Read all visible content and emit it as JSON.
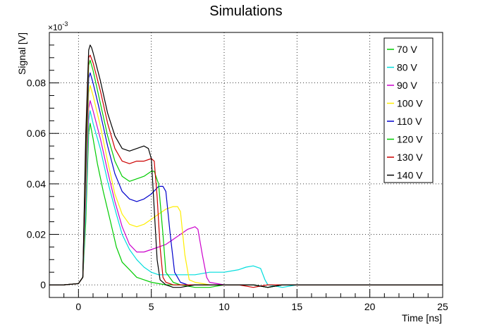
{
  "chart_data": {
    "type": "line",
    "title": "Simulations",
    "xlabel": "Time [ns]",
    "ylabel": "Signal [V]",
    "y_multiplier_label": "×10",
    "y_multiplier_exponent": "-3",
    "xlim": [
      -2,
      25
    ],
    "ylim": [
      -0.005,
      0.1
    ],
    "x_ticks": [
      0,
      5,
      10,
      15,
      20,
      25
    ],
    "x_tick_labels": [
      "0",
      "5",
      "10",
      "15",
      "20",
      "25"
    ],
    "y_ticks": [
      0,
      0.02,
      0.04,
      0.06,
      0.08
    ],
    "y_tick_labels": [
      "0",
      "0.02",
      "0.04",
      "0.06",
      "0.08"
    ],
    "grid": true,
    "legend_position": "top-right",
    "series": [
      {
        "name": "70 V",
        "color": "#00cc00",
        "x": [
          -2,
          -1,
          0,
          0.3,
          0.5,
          0.7,
          0.8,
          1.0,
          1.3,
          1.7,
          2.2,
          2.6,
          3.0,
          3.5,
          4.0,
          4.5,
          5.0,
          6.0,
          7.0,
          8.0,
          9.0,
          10,
          11,
          12,
          13,
          14,
          15,
          16,
          17,
          18,
          19,
          20,
          21,
          22,
          23,
          24,
          25
        ],
        "y": [
          0,
          0,
          0.0005,
          0.003,
          0.025,
          0.06,
          0.064,
          0.058,
          0.048,
          0.037,
          0.025,
          0.015,
          0.009,
          0.006,
          0.003,
          0.002,
          0.001,
          0,
          0,
          -0.001,
          -0.001,
          0,
          0,
          0,
          -0.001,
          0,
          0,
          0,
          0,
          0,
          0,
          0,
          0,
          0,
          0,
          0,
          0
        ]
      },
      {
        "name": "80 V",
        "color": "#00dddd",
        "x": [
          -2,
          -1,
          0,
          0.3,
          0.5,
          0.7,
          0.8,
          1.0,
          1.5,
          2.0,
          2.6,
          3.0,
          3.5,
          4.0,
          4.5,
          5.0,
          5.5,
          6.0,
          7.0,
          8.0,
          9.0,
          10,
          11,
          11.5,
          12,
          12.5,
          12.8,
          13.0,
          14,
          15,
          16,
          17,
          18,
          19,
          20,
          22,
          25
        ],
        "y": [
          0,
          0,
          0.0005,
          0.003,
          0.03,
          0.065,
          0.069,
          0.064,
          0.054,
          0.041,
          0.028,
          0.02,
          0.014,
          0.01,
          0.007,
          0.005,
          0.004,
          0.004,
          0.004,
          0.004,
          0.005,
          0.005,
          0.006,
          0.007,
          0.0075,
          0.0065,
          0.002,
          0,
          -0.001,
          0,
          0,
          0,
          0,
          0,
          0,
          0,
          0
        ]
      },
      {
        "name": "90 V",
        "color": "#cc00cc",
        "x": [
          -2,
          -1,
          0,
          0.3,
          0.5,
          0.7,
          0.8,
          1.0,
          1.5,
          2.0,
          2.5,
          3.0,
          3.5,
          4.0,
          4.5,
          5.0,
          5.5,
          6.0,
          6.5,
          7.0,
          7.5,
          8.0,
          8.2,
          8.5,
          8.8,
          9.0,
          10,
          11,
          12,
          13,
          14,
          15,
          17,
          19,
          21,
          23,
          25
        ],
        "y": [
          0,
          0,
          0.0005,
          0.003,
          0.035,
          0.07,
          0.073,
          0.069,
          0.058,
          0.045,
          0.033,
          0.023,
          0.016,
          0.013,
          0.013,
          0.014,
          0.015,
          0.016,
          0.018,
          0.02,
          0.022,
          0.023,
          0.022,
          0.012,
          0.003,
          0.001,
          0,
          0,
          0,
          -0.001,
          0,
          0,
          0,
          0,
          0,
          0,
          0
        ]
      },
      {
        "name": "100 V",
        "color": "#ffee00",
        "x": [
          -2,
          -1,
          0,
          0.3,
          0.5,
          0.7,
          0.8,
          1.0,
          1.5,
          2.0,
          2.5,
          3.0,
          3.5,
          4.0,
          4.5,
          5.0,
          5.5,
          6.0,
          6.5,
          6.8,
          7.0,
          7.3,
          7.6,
          8.0,
          9.0,
          10,
          11,
          12,
          13,
          14,
          15,
          17,
          19,
          21,
          23,
          25
        ],
        "y": [
          0,
          0,
          0.0005,
          0.003,
          0.04,
          0.076,
          0.079,
          0.075,
          0.063,
          0.049,
          0.036,
          0.028,
          0.024,
          0.023,
          0.024,
          0.026,
          0.028,
          0.03,
          0.031,
          0.031,
          0.029,
          0.012,
          0.002,
          0.001,
          0,
          0,
          0,
          0,
          -0.001,
          0,
          0,
          0,
          0,
          0,
          0,
          0
        ]
      },
      {
        "name": "110 V",
        "color": "#0000cc",
        "x": [
          -2,
          -1,
          0,
          0.3,
          0.5,
          0.7,
          0.8,
          1.0,
          1.5,
          2.0,
          2.5,
          3.0,
          3.5,
          4.0,
          4.5,
          5.0,
          5.5,
          5.8,
          6.0,
          6.3,
          6.6,
          7.0,
          7.5,
          8.0,
          9.0,
          10,
          11,
          12,
          13,
          14,
          15,
          17,
          19,
          21,
          23,
          25
        ],
        "y": [
          0,
          0,
          0.0005,
          0.003,
          0.045,
          0.082,
          0.084,
          0.08,
          0.068,
          0.055,
          0.044,
          0.037,
          0.034,
          0.033,
          0.034,
          0.036,
          0.039,
          0.039,
          0.037,
          0.02,
          0.005,
          0.001,
          0,
          0,
          0,
          0,
          0,
          0,
          -0.001,
          0,
          0,
          0,
          0,
          0,
          0,
          0
        ]
      },
      {
        "name": "120 V",
        "color": "#00cc00",
        "x": [
          -2,
          -1,
          0,
          0.3,
          0.5,
          0.7,
          0.8,
          1.0,
          1.5,
          2.0,
          2.5,
          3.0,
          3.5,
          4.0,
          4.5,
          5.0,
          5.2,
          5.5,
          5.8,
          6.0,
          6.5,
          7.0,
          8.0,
          9.0,
          10,
          11,
          12,
          13,
          14,
          15,
          17,
          19,
          21,
          23,
          25
        ],
        "y": [
          0,
          0,
          0.0005,
          0.003,
          0.05,
          0.087,
          0.089,
          0.085,
          0.072,
          0.059,
          0.049,
          0.043,
          0.041,
          0.042,
          0.043,
          0.045,
          0.045,
          0.04,
          0.02,
          0.005,
          0.001,
          0,
          0,
          0,
          0,
          0,
          0,
          -0.001,
          0,
          0,
          0,
          0,
          0,
          0,
          0
        ]
      },
      {
        "name": "130 V",
        "color": "#cc0000",
        "x": [
          -2,
          -1,
          0,
          0.3,
          0.5,
          0.7,
          0.8,
          1.0,
          1.5,
          2.0,
          2.5,
          3.0,
          3.5,
          4.0,
          4.5,
          5.0,
          5.2,
          5.4,
          5.6,
          5.8,
          6.0,
          6.5,
          7.0,
          8.0,
          9.0,
          10,
          11,
          12,
          13,
          14,
          15,
          17,
          19,
          21,
          23,
          25
        ],
        "y": [
          0,
          0,
          0.0005,
          0.003,
          0.055,
          0.09,
          0.091,
          0.088,
          0.077,
          0.064,
          0.054,
          0.049,
          0.048,
          0.049,
          0.049,
          0.05,
          0.049,
          0.035,
          0.015,
          0.003,
          0.001,
          0,
          0,
          0,
          0,
          0,
          0,
          -0.001,
          0,
          0,
          0,
          0,
          0,
          0,
          0,
          0
        ]
      },
      {
        "name": "140 V",
        "color": "#000000",
        "x": [
          -2,
          -1,
          0,
          0.3,
          0.5,
          0.7,
          0.8,
          0.9,
          1.0,
          1.5,
          2.0,
          2.5,
          3.0,
          3.5,
          4.0,
          4.5,
          4.8,
          5.0,
          5.2,
          5.4,
          5.6,
          6.0,
          6.5,
          7.0,
          8.0,
          9.0,
          10,
          11,
          12,
          13,
          14,
          15,
          17,
          19,
          21,
          23,
          25
        ],
        "y": [
          0,
          0,
          0.0005,
          0.003,
          0.06,
          0.093,
          0.095,
          0.094,
          0.092,
          0.081,
          0.068,
          0.059,
          0.054,
          0.053,
          0.054,
          0.055,
          0.054,
          0.05,
          0.03,
          0.01,
          0.002,
          0,
          -0.001,
          -0.001,
          0,
          0,
          0,
          0,
          0,
          -0.001,
          0,
          0,
          0,
          0,
          0,
          0,
          0
        ]
      }
    ]
  }
}
